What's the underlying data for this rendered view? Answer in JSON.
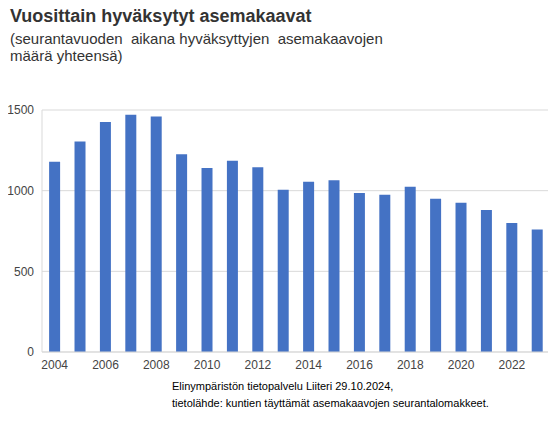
{
  "chart_data": {
    "type": "bar",
    "title": "Vuosittain hyväksytyt asemakaavat",
    "subtitle": "(seurantavuoden  aikana hyväksyttyjen  asemakaavojen määrä yhteensä)",
    "annotations": [
      "Elinympäristön tietopalvelu Liiteri 29.10.2024,",
      "tietolähde: kuntien täyttämät asemakaavojen seurantalomakkeet."
    ],
    "categories": [
      "2004",
      null,
      "2006",
      null,
      "2008",
      null,
      "2010",
      null,
      "2012",
      null,
      "2014",
      null,
      "2016",
      null,
      "2018",
      null,
      "2020",
      null,
      "2022",
      null
    ],
    "values": [
      1180,
      1305,
      1425,
      1470,
      1460,
      1225,
      1140,
      1185,
      1145,
      1005,
      1055,
      1065,
      985,
      975,
      1025,
      950,
      925,
      880,
      800,
      760
    ],
    "color": "#4472c4",
    "ylim": [
      0,
      1500
    ],
    "yticks": [
      0,
      500,
      1000,
      1500
    ],
    "grid": true
  }
}
